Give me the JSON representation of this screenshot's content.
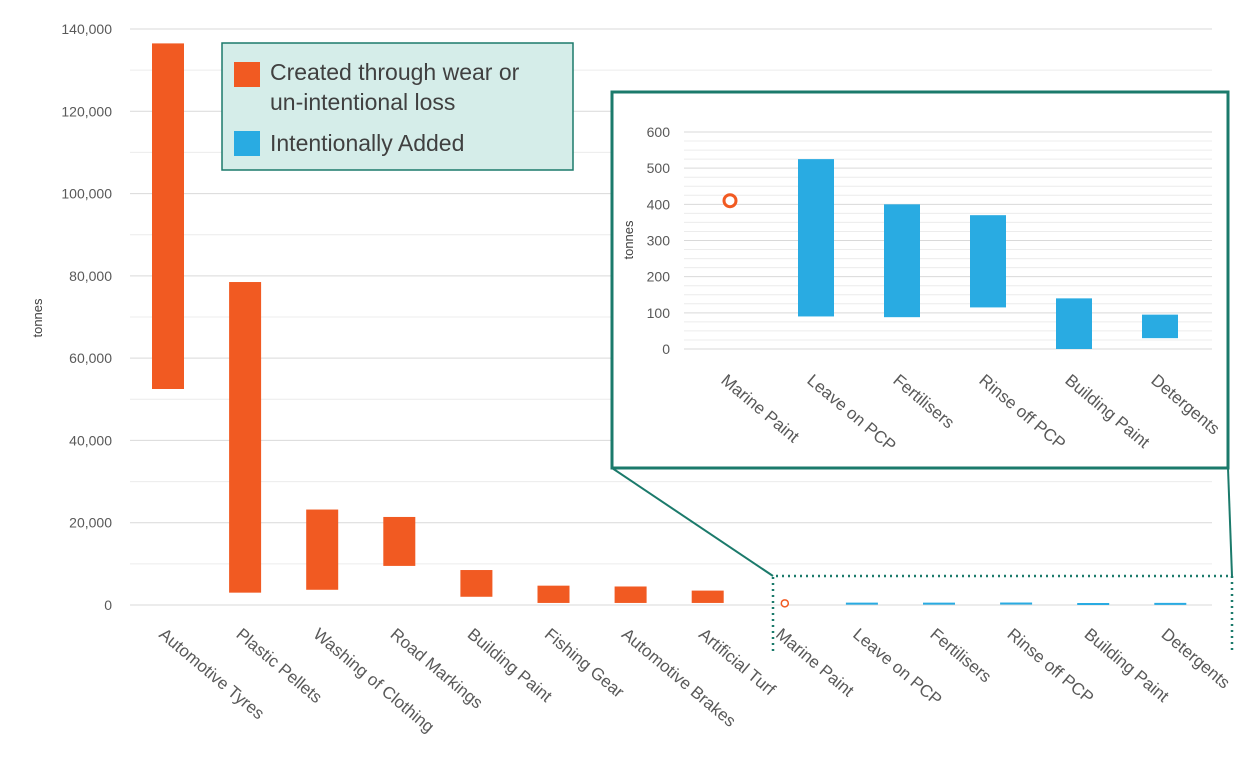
{
  "chart_data": [
    {
      "type": "bar",
      "subtype": "floating-range",
      "title": "",
      "xlabel": "",
      "ylabel": "tonnes",
      "ylim": [
        0,
        140000
      ],
      "yticks": [
        "0",
        "20,000",
        "40,000",
        "60,000",
        "80,000",
        "100,000",
        "120,000",
        "140,000"
      ],
      "grid": true,
      "legend_position": "top-left",
      "categories": [
        "Automotive Tyres",
        "Plastic Pellets",
        "Washing of Clothing",
        "Road Markings",
        "Building Paint",
        "Fishing Gear",
        "Automotive Brakes",
        "Artificial Turf",
        "Marine Paint",
        "Leave on PCP",
        "Fertilisers",
        "Rinse off PCP",
        "Building Paint",
        "Detergents"
      ],
      "series": [
        {
          "name": "Created through wear or un-intentional loss",
          "color": "#f15a22",
          "ranges": [
            [
              52500,
              136500
            ],
            [
              3000,
              78500
            ],
            [
              3700,
              23200
            ],
            [
              9500,
              21400
            ],
            [
              2000,
              8500
            ],
            [
              500,
              4700
            ],
            [
              500,
              4500
            ],
            [
              500,
              3500
            ],
            null,
            null,
            null,
            null,
            null,
            null
          ],
          "point_markers": [
            null,
            null,
            null,
            null,
            null,
            null,
            null,
            null,
            410,
            null,
            null,
            null,
            null,
            null
          ]
        },
        {
          "name": "Intentionally Added",
          "color": "#29abe2",
          "ranges": [
            null,
            null,
            null,
            null,
            null,
            null,
            null,
            null,
            null,
            [
              90,
              525
            ],
            [
              88,
              400
            ],
            [
              115,
              370
            ],
            [
              0,
              140
            ],
            [
              30,
              95
            ]
          ]
        }
      ]
    },
    {
      "type": "bar",
      "subtype": "floating-range",
      "title": "",
      "xlabel": "",
      "ylabel": "tonnes",
      "ylim": [
        0,
        600
      ],
      "yticks": [
        "0",
        "100",
        "200",
        "300",
        "400",
        "500",
        "600"
      ],
      "grid": true,
      "categories": [
        "Marine Paint",
        "Leave on PCP",
        "Fertilisers",
        "Rinse off PCP",
        "Building Paint",
        "Detergents"
      ],
      "series": [
        {
          "name": "Created through wear or un-intentional loss",
          "color": "#f15a22",
          "ranges": [
            null,
            null,
            null,
            null,
            null,
            null
          ],
          "point_markers": [
            410,
            null,
            null,
            null,
            null,
            null
          ]
        },
        {
          "name": "Intentionally Added",
          "color": "#29abe2",
          "ranges": [
            null,
            [
              90,
              525
            ],
            [
              88,
              400
            ],
            [
              115,
              370
            ],
            [
              0,
              140
            ],
            [
              30,
              95
            ]
          ]
        }
      ]
    }
  ]
}
